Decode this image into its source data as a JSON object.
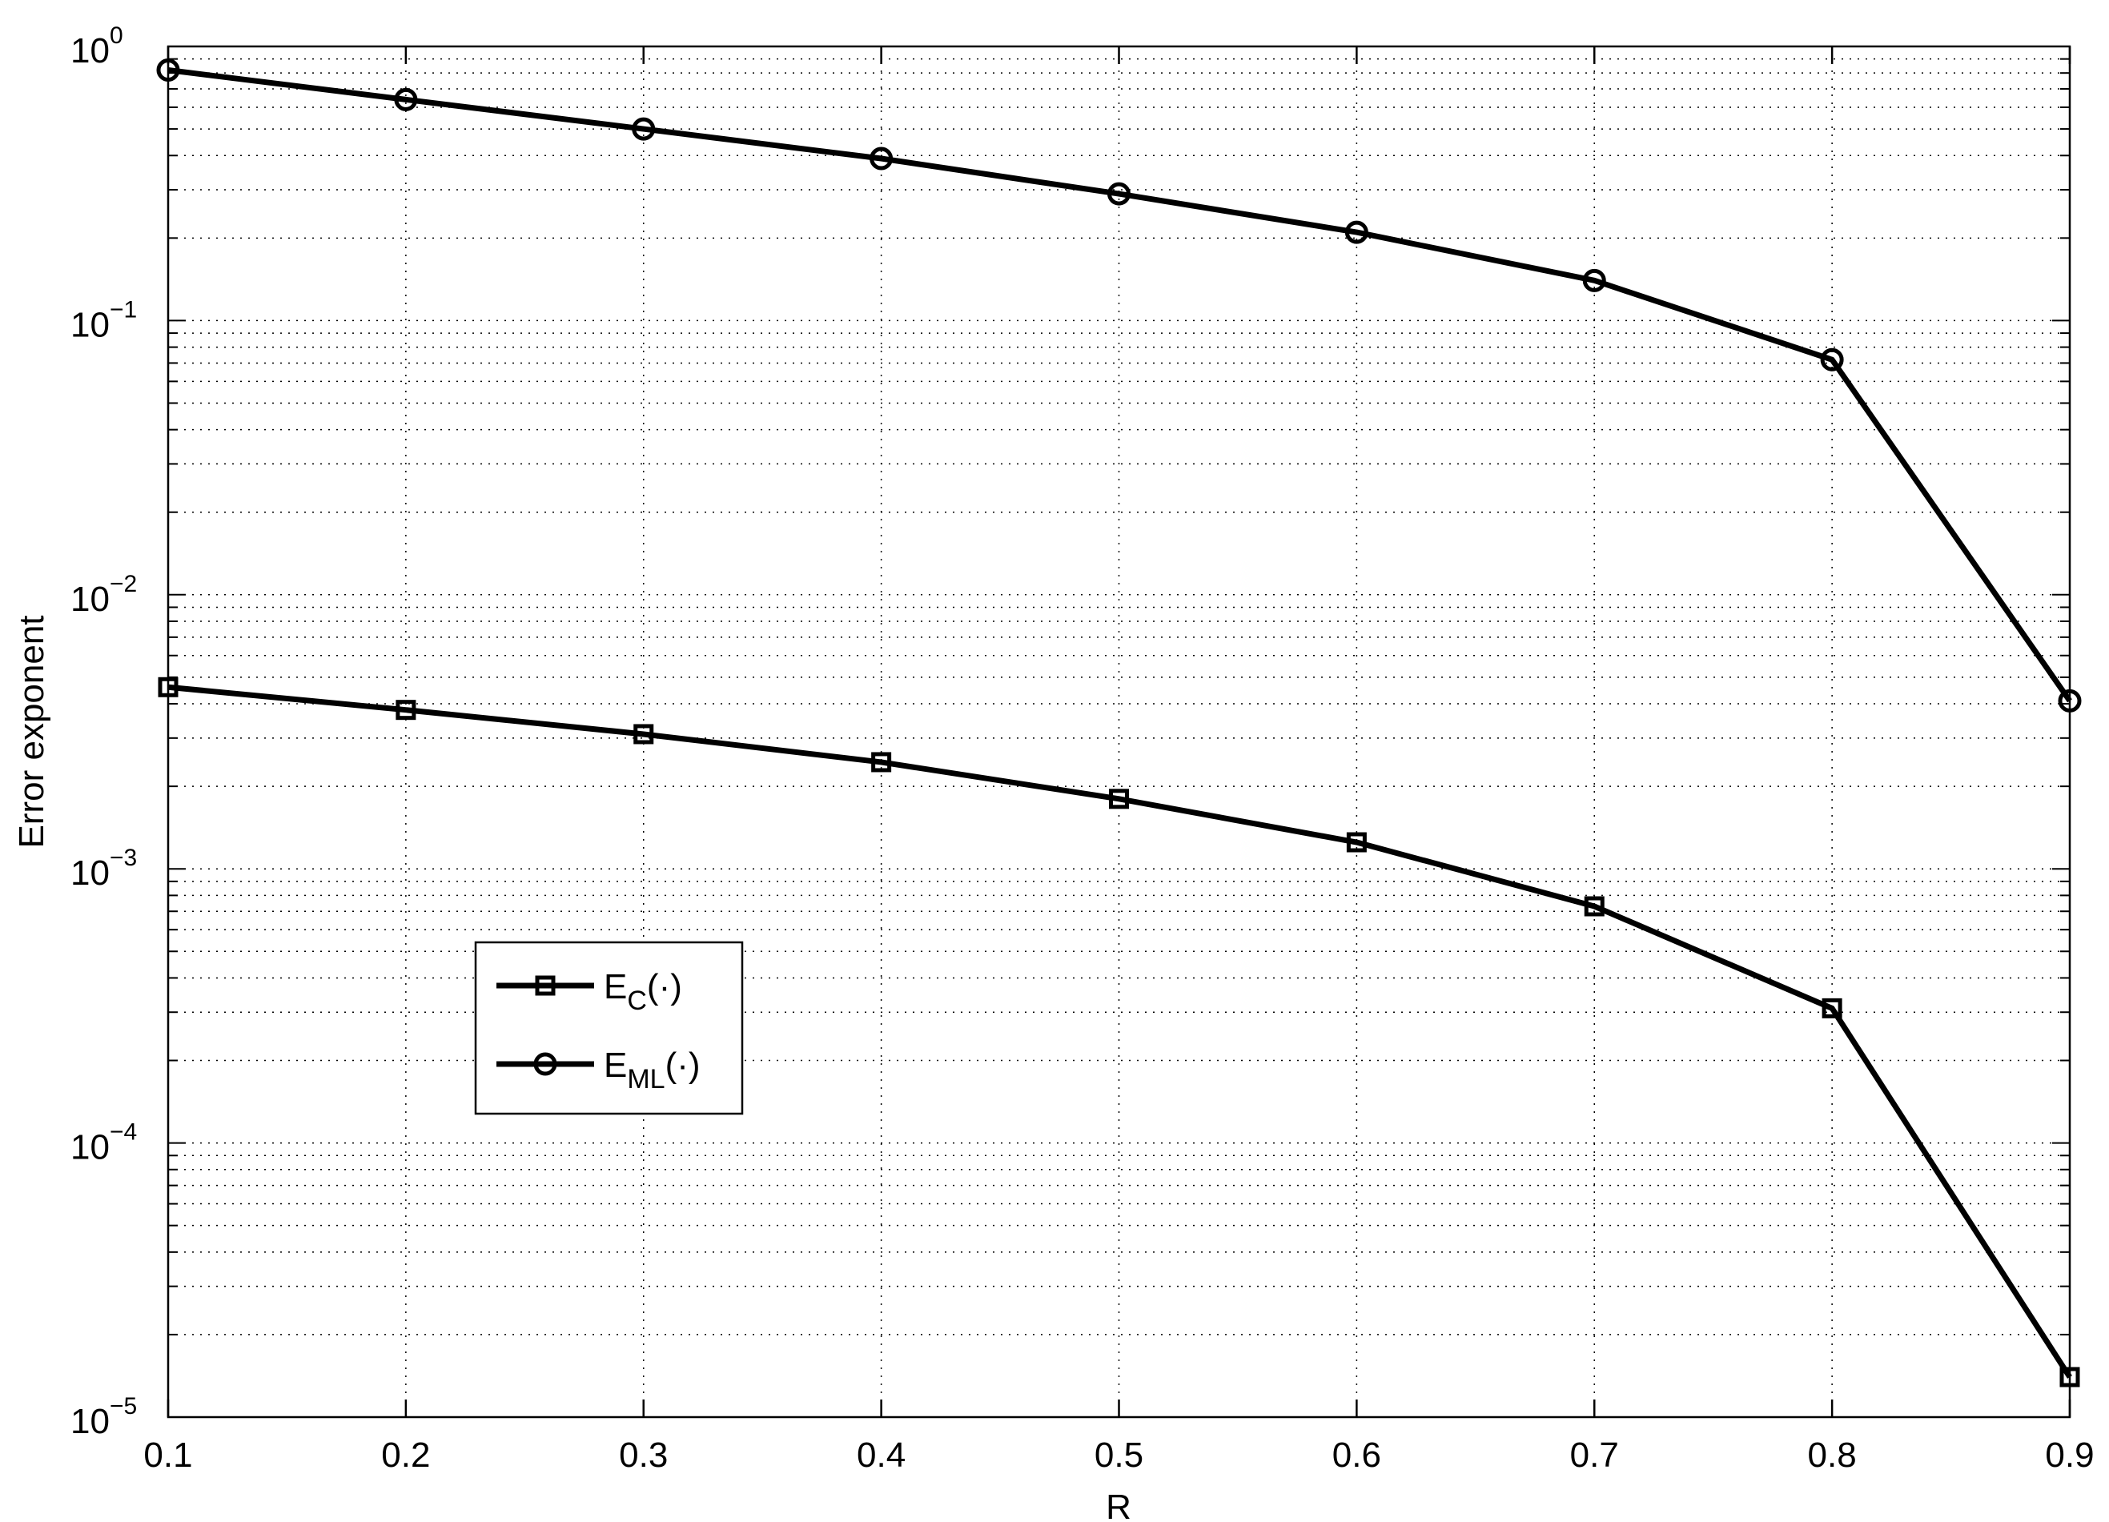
{
  "chart_data": {
    "type": "line",
    "title": "",
    "xlabel": "R",
    "ylabel": "Error exponent",
    "xlim": [
      0.1,
      0.9
    ],
    "ylim": [
      1e-05,
      1
    ],
    "yscale": "log",
    "grid": true,
    "legend_placement": "lower-left",
    "x": [
      0.1,
      0.2,
      0.3,
      0.4,
      0.5,
      0.6,
      0.7,
      0.8,
      0.9
    ],
    "x_tick_labels": [
      "0.1",
      "0.2",
      "0.3",
      "0.4",
      "0.5",
      "0.6",
      "0.7",
      "0.8",
      "0.9"
    ],
    "y_tick_labels": [
      {
        "base": "10",
        "exp": "0"
      },
      {
        "base": "10",
        "exp": "−1"
      },
      {
        "base": "10",
        "exp": "−2"
      },
      {
        "base": "10",
        "exp": "−3"
      },
      {
        "base": "10",
        "exp": "−4"
      },
      {
        "base": "10",
        "exp": "−5"
      }
    ],
    "series": [
      {
        "name": "E_C(·)",
        "legend": {
          "main": "E",
          "sub": "C",
          "rest": "(·)"
        },
        "marker": "square",
        "color": "#000000",
        "values": [
          0.0046,
          0.0038,
          0.0031,
          0.00245,
          0.0018,
          0.00125,
          0.00073,
          0.00031,
          1.4e-05
        ]
      },
      {
        "name": "E_ML(·)",
        "legend": {
          "main": "E",
          "sub": "ML",
          "rest": "(·)"
        },
        "marker": "circle",
        "color": "#000000",
        "values": [
          0.82,
          0.64,
          0.5,
          0.39,
          0.29,
          0.21,
          0.14,
          0.072,
          0.0041
        ]
      }
    ]
  }
}
